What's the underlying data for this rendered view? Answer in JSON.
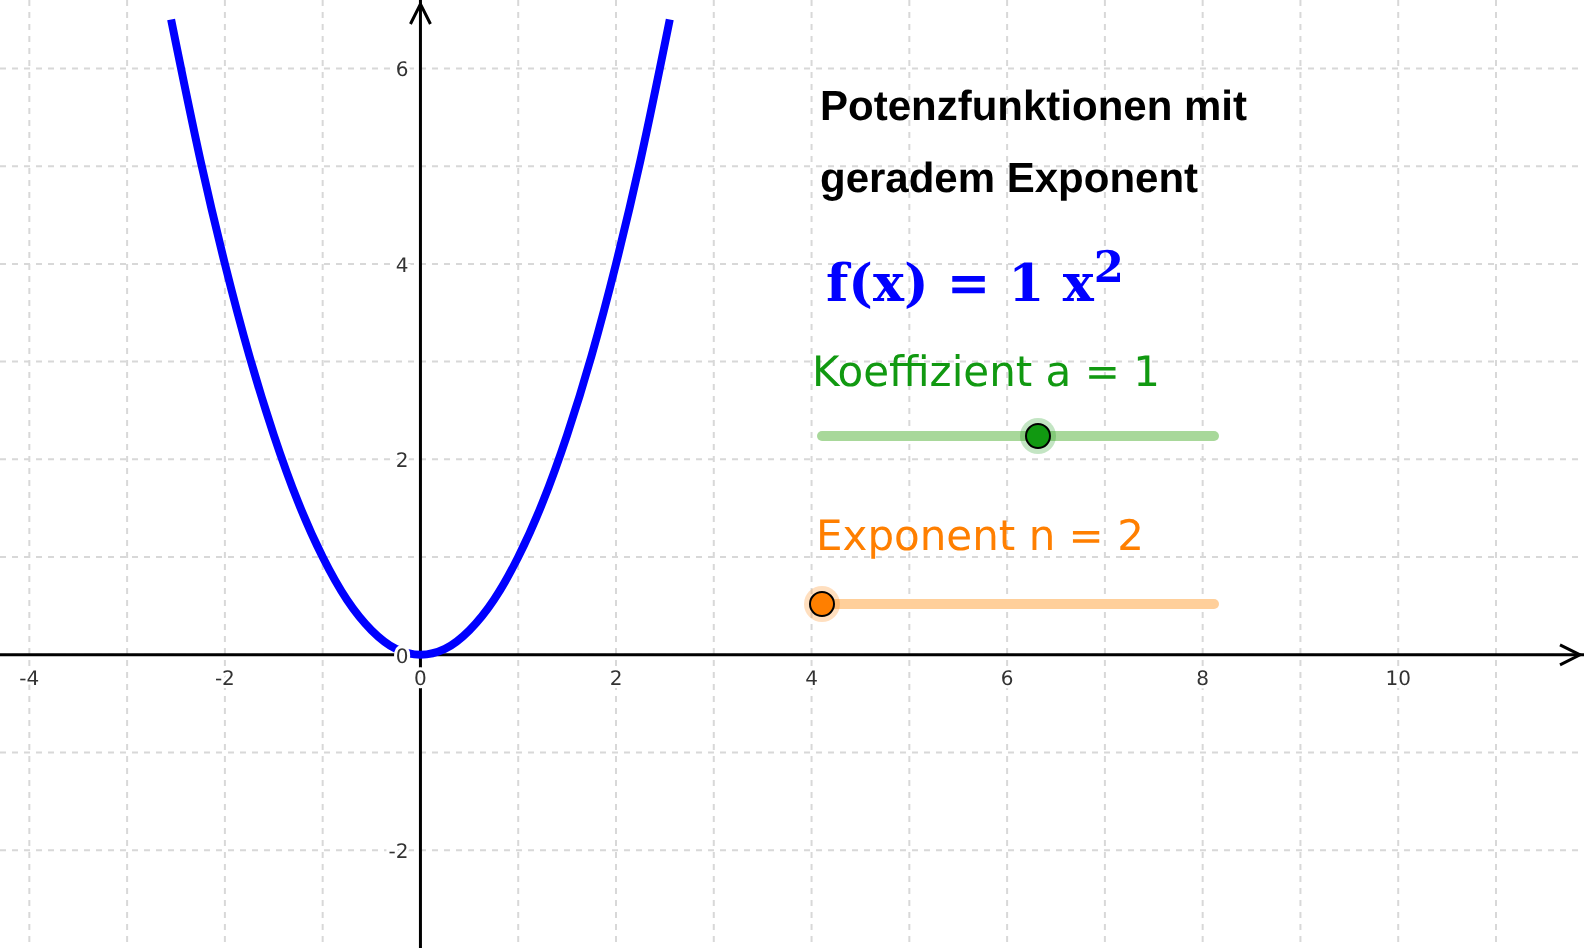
{
  "chart_data": {
    "type": "line",
    "title": "Potenzfunktionen mit geradem Exponent",
    "annotations": [
      "f(x) = 1 x$^{2}$",
      "Koeffizient a = 1",
      "Exponent n = 2"
    ],
    "x": [
      -2.55,
      -2.25,
      -2,
      -1.75,
      -1.5,
      -1.25,
      -1,
      -0.75,
      -0.5,
      -0.25,
      0,
      0.25,
      0.5,
      0.75,
      1,
      1.25,
      1.5,
      1.75,
      2,
      2.25,
      2.55
    ],
    "series": [
      {
        "color": "#0000ff",
        "values": [
          6.5,
          5.06,
          4,
          3.06,
          2.25,
          1.56,
          1,
          0.56,
          0.25,
          0.06,
          0,
          0.06,
          0.25,
          0.56,
          1,
          1.56,
          2.25,
          3.06,
          4,
          5.06,
          6.5
        ]
      }
    ],
    "xlim": [
      -4.3,
      11.9
    ],
    "ylim": [
      -3,
      6.7
    ],
    "xticks": [
      -4,
      {
        "value": -3,
        "label": null
      },
      -2,
      {
        "value": -1,
        "label": null
      },
      0,
      {
        "value": 1,
        "label": null
      },
      2,
      {
        "value": 3,
        "label": null
      },
      4,
      {
        "value": 5,
        "label": null
      },
      6,
      {
        "value": 7,
        "label": null
      },
      8,
      {
        "value": 9,
        "label": null
      },
      10,
      {
        "value": 11,
        "label": null
      }
    ],
    "yticks": [
      -2,
      {
        "value": -1,
        "label": null
      },
      0,
      {
        "value": 1,
        "label": null
      },
      2,
      {
        "value": 3,
        "label": null
      },
      4,
      {
        "value": 5,
        "label": null
      },
      6
    ],
    "grid": true,
    "marker": "none",
    "line_style": "solid"
  }
}
